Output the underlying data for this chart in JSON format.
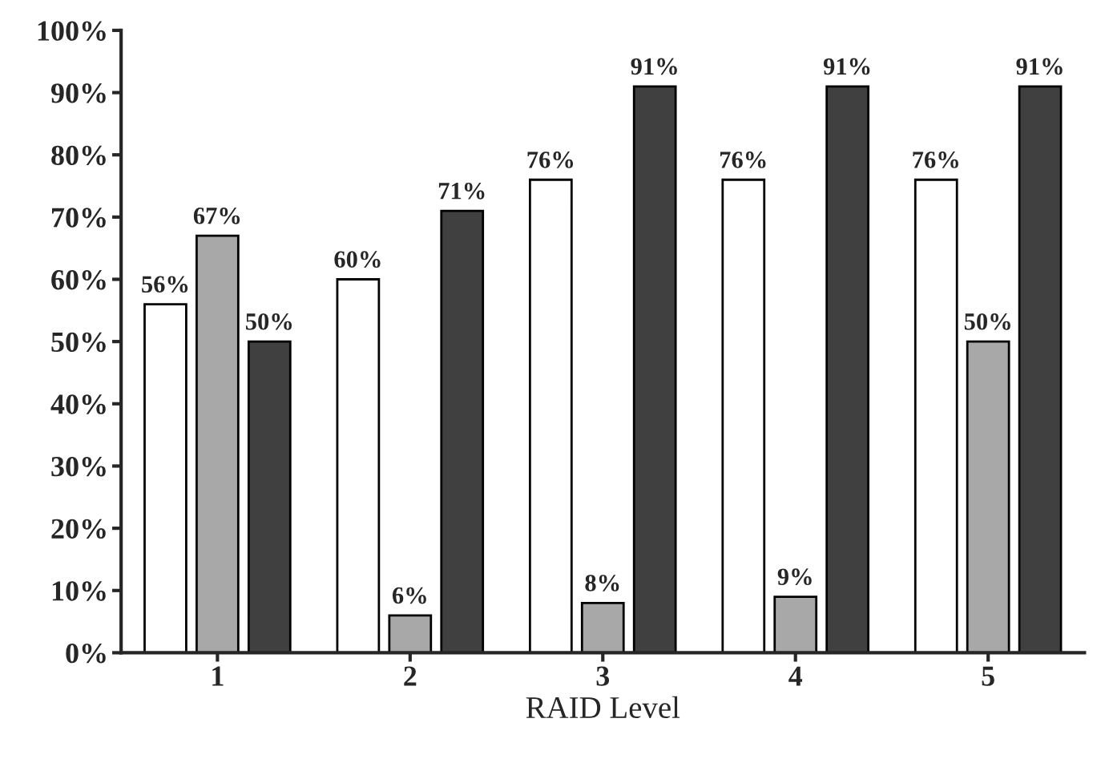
{
  "chart_data": {
    "type": "bar",
    "xlabel": "RAID Level",
    "categories": [
      "1",
      "2",
      "3",
      "4",
      "5"
    ],
    "series": [
      {
        "color": "#ffffff",
        "values": [
          56,
          60,
          76,
          76,
          76
        ],
        "value_labels": [
          "56%",
          "60%",
          "76%",
          "76%",
          "76%"
        ]
      },
      {
        "color": "#a8a8a8",
        "values": [
          67,
          6,
          8,
          9,
          50
        ],
        "value_labels": [
          "67%",
          "6%",
          "8%",
          "9%",
          "50%"
        ]
      },
      {
        "color": "#404040",
        "values": [
          50,
          71,
          91,
          91,
          91
        ],
        "value_labels": [
          "50%",
          "71%",
          "91%",
          "91%",
          "91%"
        ]
      }
    ],
    "ylim": [
      0,
      100
    ],
    "yticks": [
      {
        "value": 0,
        "label": "0%"
      },
      {
        "value": 10,
        "label": "10%"
      },
      {
        "value": 20,
        "label": "20%"
      },
      {
        "value": 30,
        "label": "30%"
      },
      {
        "value": 40,
        "label": "40%"
      },
      {
        "value": 50,
        "label": "50%"
      },
      {
        "value": 60,
        "label": "60%"
      },
      {
        "value": 70,
        "label": "70%"
      },
      {
        "value": 80,
        "label": "80%"
      },
      {
        "value": 90,
        "label": "90%"
      },
      {
        "value": 100,
        "label": "100%"
      }
    ],
    "grid": false,
    "legend": false
  }
}
